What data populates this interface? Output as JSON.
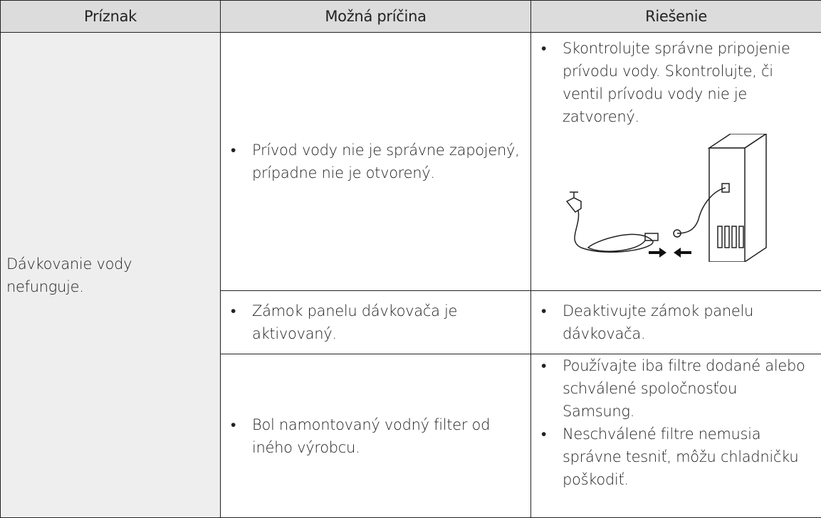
{
  "table": {
    "header": [
      "Príznak",
      "Možná príčina",
      "Riešenie"
    ],
    "symptom": "Dávkovanie vody nefunguje.",
    "rows": [
      {
        "cause": [
          "Prívod vody nie je správne zapojený, prípadne nie je otvorený."
        ],
        "solution": [
          "Skontrolujte správne pripojenie prívodu vody. Skontrolujte, či ventil prívodu vody nie je zatvorený."
        ]
      },
      {
        "cause": [
          "Zámok panelu dávkovača je aktivovaný."
        ],
        "solution": [
          "Deaktivujte zámok panelu dávkovača."
        ]
      },
      {
        "cause": [
          "Bol namontovaný vodný filter od iného výrobcu."
        ],
        "solution": [
          "Používajte iba filtre dodané alebo schválené spoločnosťou Samsung.",
          "Neschválené filtre nemusia správne tesniť, môžu chladničku poškodiť."
        ]
      }
    ]
  }
}
